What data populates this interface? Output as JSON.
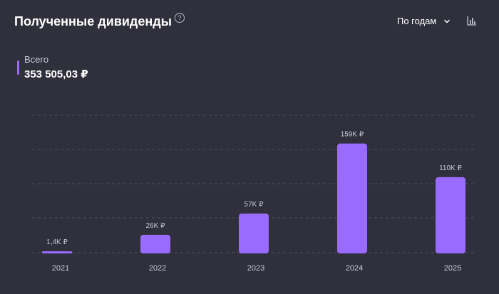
{
  "header": {
    "title": "Полученные дивиденды",
    "help_icon": "question-circle-icon",
    "period_label": "По годам",
    "chevron_icon": "chevron-down-icon",
    "chart_type_icon": "bar-chart-icon"
  },
  "total": {
    "label": "Всего",
    "value": "353 505,03 ₽",
    "marker_color": "#9a6bff"
  },
  "colors": {
    "background": "#30303d",
    "bar": "#9a6bff",
    "grid": "#4e4e5c",
    "label": "#c9c9d4"
  },
  "chart_data": {
    "type": "bar",
    "title": "",
    "xlabel": "",
    "ylabel": "",
    "categories": [
      "2021",
      "2022",
      "2023",
      "2024",
      "2025"
    ],
    "values": [
      1400,
      26000,
      57000,
      159000,
      110000
    ],
    "value_labels": [
      "1,4K ₽",
      "26K ₽",
      "57K ₽",
      "159K ₽",
      "110K ₽"
    ],
    "ylim": [
      0,
      200000
    ],
    "grid": true,
    "grid_style": "dashed"
  }
}
